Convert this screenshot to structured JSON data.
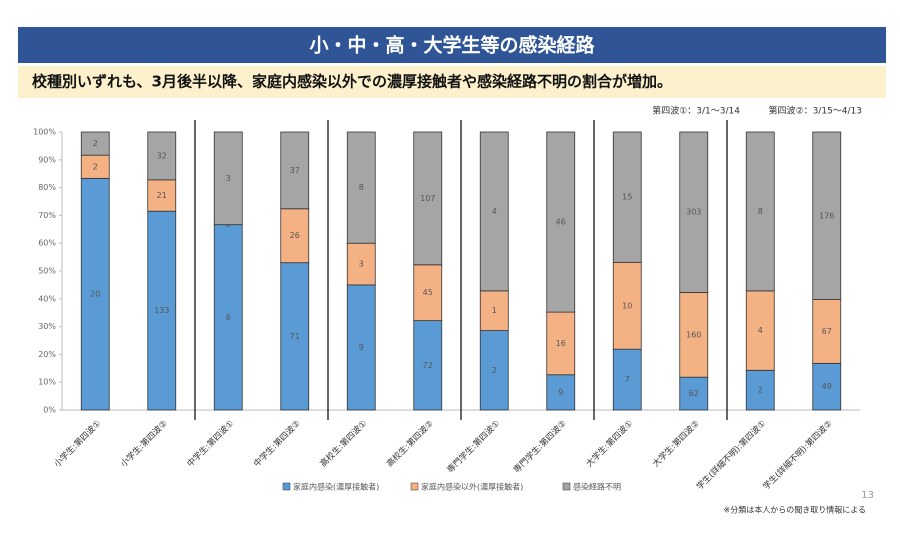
{
  "chart_data": {
    "type": "bar",
    "stack": "percent",
    "title": "小・中・高・大学生等の感染経路",
    "subtitle": "校種別いずれも、3月後半以降、家庭内感染以外での濃厚接触者や感染経路不明の割合が増加。",
    "notes": [
      "第四波①：3/1～3/14",
      "第四波②：3/15～4/13"
    ],
    "page_number": "13",
    "footnote": "※分類は本人からの聞き取り情報による",
    "categories": [
      "小学生:第四波①",
      "小学生:第四波②",
      "中学生:第四波①",
      "中学生:第四波②",
      "高校生:第四波①",
      "高校生:第四波②",
      "専門学生:第四波①",
      "専門学生:第四波②",
      "大学生:第四波①",
      "大学生:第四波②",
      "学生(詳細不明):第四波①",
      "学生(詳細不明):第四波②"
    ],
    "series": [
      {
        "name": "家庭内感染(濃厚接触者)",
        "color": "#5b9bd5",
        "values": [
          20,
          133,
          6,
          71,
          9,
          72,
          2,
          9,
          7,
          62,
          2,
          49
        ]
      },
      {
        "name": "家庭内感染以外(濃厚接触者)",
        "color": "#f4b183",
        "values": [
          2,
          21,
          0,
          26,
          3,
          45,
          1,
          16,
          10,
          160,
          4,
          67
        ]
      },
      {
        "name": "感染経路不明",
        "color": "#a5a5a5",
        "values": [
          2,
          32,
          3,
          37,
          8,
          107,
          4,
          46,
          15,
          303,
          8,
          176
        ]
      }
    ],
    "ylim": [
      0,
      100
    ],
    "yticks": [
      {
        "value": 0,
        "label": "0%"
      },
      {
        "value": 10,
        "label": "10%"
      },
      {
        "value": 20,
        "label": "20%"
      },
      {
        "value": 30,
        "label": "30%"
      },
      {
        "value": 40,
        "label": "40%"
      },
      {
        "value": 50,
        "label": "50%"
      },
      {
        "value": 60,
        "label": "60%"
      },
      {
        "value": 70,
        "label": "70%"
      },
      {
        "value": 80,
        "label": "80%"
      },
      {
        "value": 90,
        "label": "90%"
      },
      {
        "value": 100,
        "label": "100%"
      }
    ],
    "grid": false,
    "legend": "bottom"
  }
}
